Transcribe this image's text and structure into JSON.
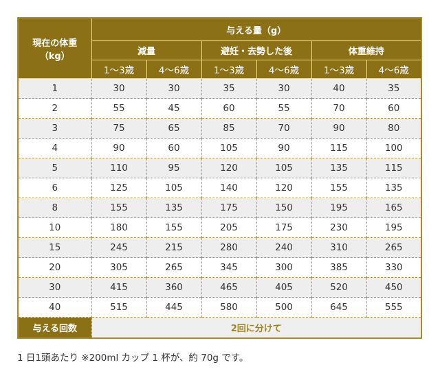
{
  "header": {
    "weight_label": "現在の体重",
    "weight_unit": "（kg）",
    "amount_label": "与える量（g）",
    "groups": [
      "減量",
      "避妊・去勢した後",
      "体重維持"
    ],
    "ages": [
      "1〜3歳",
      "4〜6歳",
      "1〜3歳",
      "4〜6歳",
      "1〜3歳",
      "4〜6歳"
    ]
  },
  "rows": [
    [
      "1",
      "30",
      "30",
      "35",
      "30",
      "40",
      "35"
    ],
    [
      "2",
      "55",
      "45",
      "60",
      "55",
      "70",
      "60"
    ],
    [
      "3",
      "75",
      "65",
      "85",
      "70",
      "90",
      "80"
    ],
    [
      "4",
      "90",
      "60",
      "105",
      "90",
      "115",
      "100"
    ],
    [
      "5",
      "110",
      "95",
      "120",
      "105",
      "135",
      "115"
    ],
    [
      "6",
      "125",
      "105",
      "140",
      "120",
      "155",
      "135"
    ],
    [
      "8",
      "155",
      "135",
      "175",
      "150",
      "195",
      "165"
    ],
    [
      "10",
      "180",
      "155",
      "205",
      "175",
      "230",
      "195"
    ],
    [
      "15",
      "245",
      "215",
      "280",
      "240",
      "310",
      "265"
    ],
    [
      "20",
      "305",
      "265",
      "345",
      "300",
      "385",
      "330"
    ],
    [
      "30",
      "415",
      "360",
      "465",
      "405",
      "520",
      "450"
    ],
    [
      "40",
      "515",
      "445",
      "580",
      "500",
      "645",
      "555"
    ]
  ],
  "footer": {
    "label": "与える回数",
    "value": "2回に分けて"
  },
  "caption": "1 日1頭あたり ※200ml カップ 1 杯が、約 70g です。",
  "colors": {
    "header": "#8c7016",
    "border": "#a88b22",
    "accent_text": "#a08420"
  }
}
